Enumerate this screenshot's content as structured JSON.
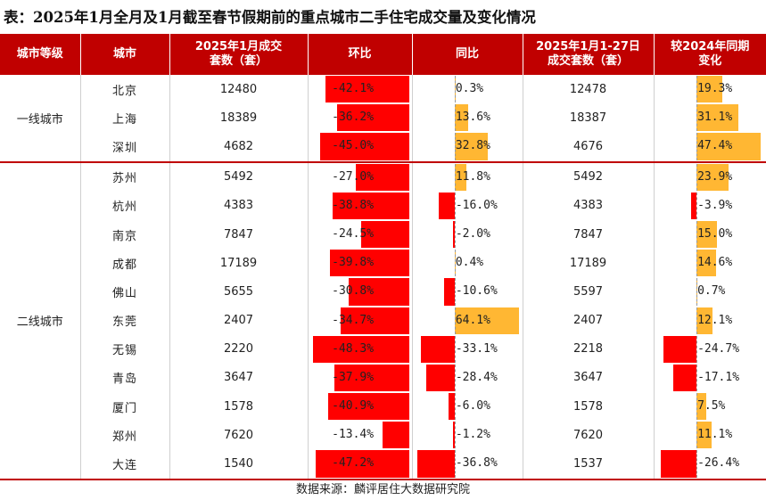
{
  "title": "表：2025年1月全月及1月截至春节假期前的重点城市二手住宅成交量及变化情况",
  "headers": [
    "城市等级",
    "城市",
    "2025年1月成交套数（套）",
    "环比",
    "同比",
    "2025年1月1-27日成交套数（套）",
    "较2024年同期变化"
  ],
  "tiers": [
    {
      "label": "一线城市",
      "rows": 3
    },
    {
      "label": "二线城市",
      "rows": 11
    }
  ],
  "rows": [
    {
      "city": "北京",
      "jan": "12480",
      "mom": -42.1,
      "mom_label": "-42.1%",
      "yoy": 0.3,
      "yoy_label": "0.3%",
      "jan27": "12478",
      "chg": 19.3,
      "chg_label": "19.3%"
    },
    {
      "city": "上海",
      "jan": "18389",
      "mom": -36.2,
      "mom_label": "-36.2%",
      "yoy": 13.6,
      "yoy_label": "13.6%",
      "jan27": "18387",
      "chg": 31.1,
      "chg_label": "31.1%"
    },
    {
      "city": "深圳",
      "jan": "4682",
      "mom": -45.0,
      "mom_label": "-45.0%",
      "yoy": 32.8,
      "yoy_label": "32.8%",
      "jan27": "4676",
      "chg": 47.4,
      "chg_label": "47.4%"
    },
    {
      "city": "苏州",
      "jan": "5492",
      "mom": -27.0,
      "mom_label": "-27.0%",
      "yoy": 11.8,
      "yoy_label": "11.8%",
      "jan27": "5492",
      "chg": 23.9,
      "chg_label": "23.9%"
    },
    {
      "city": "杭州",
      "jan": "4383",
      "mom": -38.8,
      "mom_label": "-38.8%",
      "yoy": -16.0,
      "yoy_label": "-16.0%",
      "jan27": "4383",
      "chg": -3.9,
      "chg_label": "-3.9%"
    },
    {
      "city": "南京",
      "jan": "7847",
      "mom": -24.5,
      "mom_label": "-24.5%",
      "yoy": -2.0,
      "yoy_label": "-2.0%",
      "jan27": "7847",
      "chg": 15.0,
      "chg_label": "15.0%"
    },
    {
      "city": "成都",
      "jan": "17189",
      "mom": -39.8,
      "mom_label": "-39.8%",
      "yoy": 0.4,
      "yoy_label": "0.4%",
      "jan27": "17189",
      "chg": 14.6,
      "chg_label": "14.6%"
    },
    {
      "city": "佛山",
      "jan": "5655",
      "mom": -30.8,
      "mom_label": "-30.8%",
      "yoy": -10.6,
      "yoy_label": "-10.6%",
      "jan27": "5597",
      "chg": 0.7,
      "chg_label": "0.7%"
    },
    {
      "city": "东莞",
      "jan": "2407",
      "mom": -34.7,
      "mom_label": "-34.7%",
      "yoy": 64.1,
      "yoy_label": "64.1%",
      "jan27": "2407",
      "chg": 12.1,
      "chg_label": "12.1%"
    },
    {
      "city": "无锡",
      "jan": "2220",
      "mom": -48.3,
      "mom_label": "-48.3%",
      "yoy": -33.1,
      "yoy_label": "-33.1%",
      "jan27": "2218",
      "chg": -24.7,
      "chg_label": "-24.7%"
    },
    {
      "city": "青岛",
      "jan": "3647",
      "mom": -37.9,
      "mom_label": "-37.9%",
      "yoy": -28.4,
      "yoy_label": "-28.4%",
      "jan27": "3647",
      "chg": -17.1,
      "chg_label": "-17.1%"
    },
    {
      "city": "厦门",
      "jan": "1578",
      "mom": -40.9,
      "mom_label": "-40.9%",
      "yoy": -6.0,
      "yoy_label": "-6.0%",
      "jan27": "1578",
      "chg": 7.5,
      "chg_label": "7.5%"
    },
    {
      "city": "郑州",
      "jan": "7620",
      "mom": -13.4,
      "mom_label": "-13.4%",
      "yoy": -1.2,
      "yoy_label": "-1.2%",
      "jan27": "7620",
      "chg": 11.1,
      "chg_label": "11.1%"
    },
    {
      "city": "大连",
      "jan": "1540",
      "mom": -47.2,
      "mom_label": "-47.2%",
      "yoy": -36.8,
      "yoy_label": "-36.8%",
      "jan27": "1537",
      "chg": -26.4,
      "chg_label": "-26.4%"
    }
  ],
  "colors": {
    "header_bg": "#c00000",
    "negative": "#ff0000",
    "positive": "#ffb733"
  },
  "source": "数据来源：麟评居住大数据研究院"
}
